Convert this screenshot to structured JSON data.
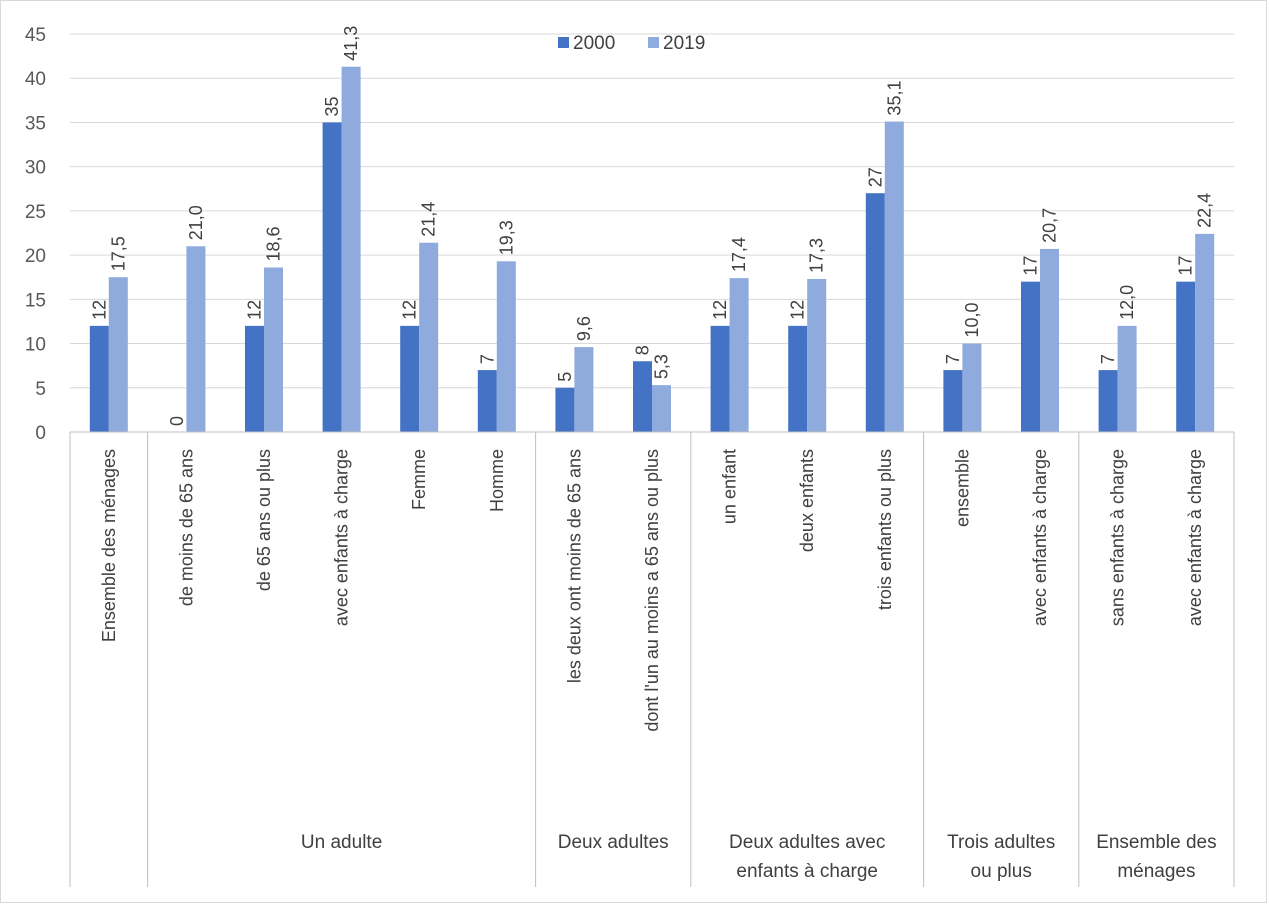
{
  "chart_data": {
    "type": "bar",
    "title": "",
    "xlabel": "",
    "ylabel": "",
    "ylim": [
      0,
      45
    ],
    "yticks": [
      0,
      5,
      10,
      15,
      20,
      25,
      30,
      35,
      40,
      45
    ],
    "grid": true,
    "legend_position": "top-center",
    "categories": [
      "Ensemble des ménages",
      "de moins de 65 ans",
      "de 65 ans ou plus",
      "avec enfants à charge",
      "Femme",
      "Homme",
      "les deux ont moins de 65 ans",
      "dont l'un au moins a 65 ans ou plus",
      "un enfant",
      "deux enfants",
      "trois enfants ou plus",
      "ensemble",
      "avec enfants à charge",
      "sans enfants à charge",
      "avec enfants à charge"
    ],
    "groups": [
      {
        "label": "",
        "start": 0,
        "end": 0
      },
      {
        "label": "Un adulte",
        "start": 1,
        "end": 5
      },
      {
        "label": "Deux adultes",
        "start": 6,
        "end": 7
      },
      {
        "label": "Deux adultes avec enfants à charge",
        "label_lines": [
          "Deux adultes avec",
          "enfants à charge"
        ],
        "start": 8,
        "end": 10
      },
      {
        "label": "Trois adultes ou plus",
        "label_lines": [
          "Trois adultes",
          "ou plus"
        ],
        "start": 11,
        "end": 12
      },
      {
        "label": "Ensemble des ménages",
        "label_lines": [
          "Ensemble des",
          "ménages"
        ],
        "start": 13,
        "end": 14
      }
    ],
    "series": [
      {
        "name": "2000",
        "color": "#4472c4",
        "values": [
          12,
          0,
          12,
          35,
          12,
          7,
          5,
          8,
          12,
          12,
          27,
          7,
          17,
          7,
          17
        ],
        "labels": [
          "12",
          "0",
          "12",
          "35",
          "12",
          "7",
          "5",
          "8",
          "12",
          "12",
          "27",
          "7",
          "17",
          "7",
          "17"
        ]
      },
      {
        "name": "2019",
        "color": "#8faadc",
        "values": [
          17.5,
          21.0,
          18.6,
          41.3,
          21.4,
          19.3,
          9.6,
          5.3,
          17.4,
          17.3,
          35.1,
          10.0,
          20.7,
          12.0,
          22.4
        ],
        "labels": [
          "17,5",
          "21,0",
          "18,6",
          "41,3",
          "21,4",
          "19,3",
          "9,6",
          "5,3",
          "17,4",
          "17,3",
          "35,1",
          "10,0",
          "20,7",
          "12,0",
          "22,4"
        ]
      }
    ]
  }
}
